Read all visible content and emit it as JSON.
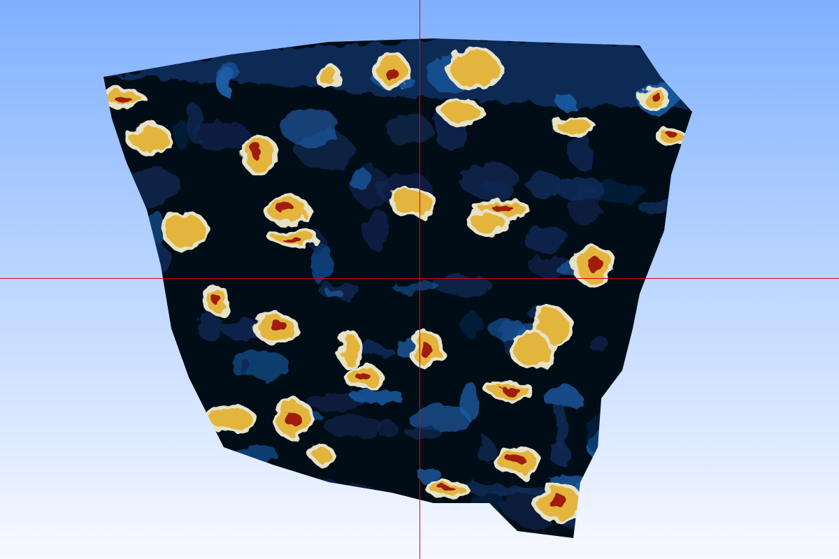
{
  "viewer": {
    "background_top_color": "#7fb0ff",
    "background_bottom_color": "#f7f9ff",
    "crosshair_color": "#e0001b"
  },
  "volume": {
    "colormap": [
      "#000814",
      "#0b2a55",
      "#1b5fa8",
      "#e6e2c8",
      "#e3b53c",
      "#a01a0c"
    ],
    "shape": "cube"
  }
}
